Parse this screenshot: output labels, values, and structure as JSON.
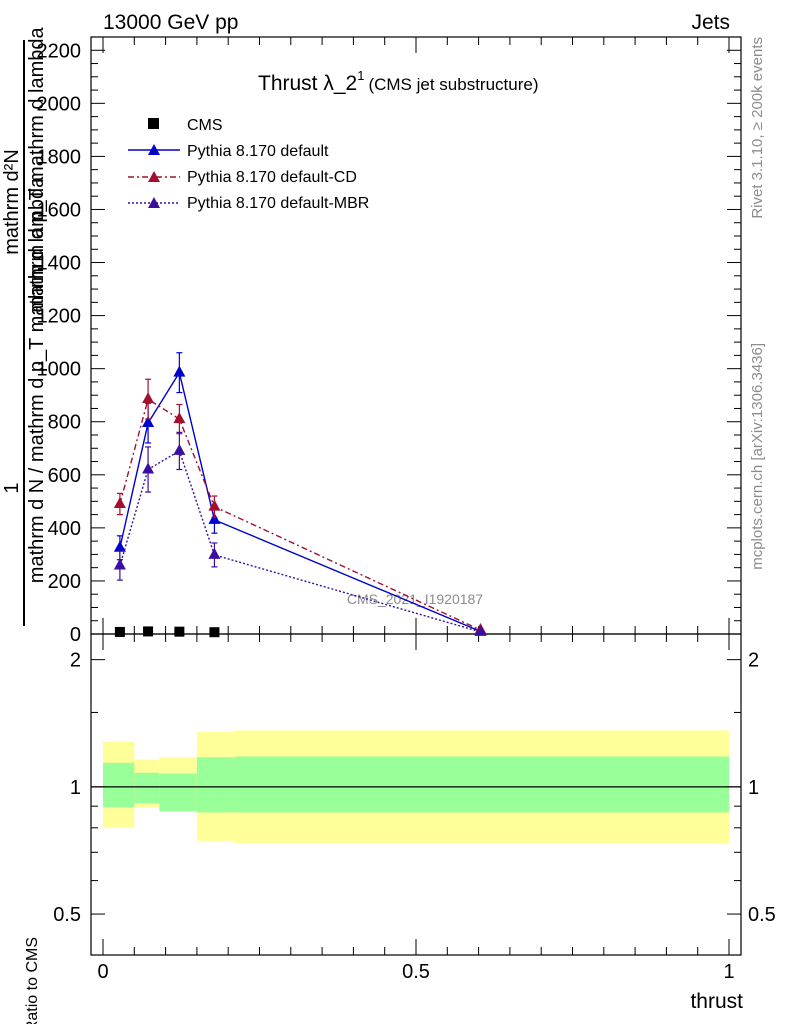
{
  "header": {
    "left": "13000 GeV pp",
    "right": "Jets"
  },
  "title": {
    "main": "Thrust λ_2",
    "superscript": "1",
    "sub": "(CMS jet substructure)"
  },
  "side_labels": {
    "rivet": "Rivet 3.1.10, ≥ 200k events",
    "mcplots": "mcplots.cern.ch [arXiv:1306.3436]"
  },
  "watermark": "CMS_2021_I1920187",
  "y_label_main": {
    "frac_one": "1",
    "denominator": "mathrm d N / mathrm d p_T mathrm d lambda",
    "numerator_line1": "mathrm d²N",
    "numerator_line2": "mathrm d p_T mathrm d lambda"
  },
  "legend": [
    {
      "label": "CMS"
    },
    {
      "label": "Pythia 8.170 default"
    },
    {
      "label": "Pythia 8.170 default-CD"
    },
    {
      "label": "Pythia 8.170 default-MBR"
    }
  ],
  "colors": {
    "cms": "#000000",
    "default": "#0000cc",
    "cd": "#a50f2f",
    "mbr": "#3a0fa0",
    "band_inner": "#99ff99",
    "band_outer": "#ffff99"
  },
  "chart_data": [
    {
      "type": "line",
      "panel": "main",
      "xlabel": "thrust",
      "xlim": [
        0,
        1
      ],
      "ylim": [
        0,
        2250
      ],
      "y_ticks": [
        0,
        200,
        400,
        600,
        800,
        1000,
        1200,
        1400,
        1600,
        1800,
        2000,
        2200
      ],
      "y_tick_labels": [
        "0",
        "200",
        "400",
        "600",
        "800",
        "1000",
        "1200",
        "1400",
        "1600",
        "1800",
        "2000",
        "2200"
      ],
      "series": [
        {
          "name": "CMS",
          "x": [
            0.027,
            0.072,
            0.122,
            0.178
          ],
          "y": [
            4,
            6,
            5,
            3
          ]
        },
        {
          "name": "Pythia 8.170 default",
          "x": [
            0.027,
            0.072,
            0.122,
            0.178,
            0.603
          ],
          "y": [
            325,
            795,
            985,
            430,
            10
          ],
          "yerr": [
            45,
            75,
            75,
            50,
            5
          ]
        },
        {
          "name": "Pythia 8.170 default-CD",
          "x": [
            0.027,
            0.072,
            0.122,
            0.178,
            0.603
          ],
          "y": [
            490,
            885,
            810,
            480,
            15
          ],
          "yerr": [
            40,
            75,
            55,
            40,
            5
          ]
        },
        {
          "name": "Pythia 8.170 default-MBR",
          "x": [
            0.027,
            0.072,
            0.122,
            0.178,
            0.603
          ],
          "y": [
            258,
            620,
            690,
            298,
            8
          ],
          "yerr": [
            55,
            85,
            70,
            45,
            4
          ]
        }
      ]
    },
    {
      "type": "area",
      "panel": "ratio",
      "xlabel": "thrust",
      "ylabel": "Ratio to CMS",
      "xlim": [
        0,
        1
      ],
      "ylim": [
        0.4,
        2.3
      ],
      "log_y": true,
      "y_ticks": [
        0.5,
        1,
        2
      ],
      "y_tick_labels": [
        "0.5",
        "1",
        "2"
      ],
      "x_ticks": [
        0,
        0.5,
        1
      ],
      "x_tick_labels": [
        "0",
        "0.5",
        "1"
      ],
      "reference_line": 1,
      "bins": [
        {
          "x0": 0.0,
          "x1": 0.05,
          "inner": [
            0.895,
            1.14
          ],
          "outer": [
            0.8,
            1.28
          ]
        },
        {
          "x0": 0.05,
          "x1": 0.09,
          "inner": [
            0.915,
            1.08
          ],
          "outer": [
            0.895,
            1.16
          ]
        },
        {
          "x0": 0.09,
          "x1": 0.15,
          "inner": [
            0.875,
            1.075
          ],
          "outer": [
            0.885,
            1.175
          ]
        },
        {
          "x0": 0.15,
          "x1": 0.21,
          "inner": [
            0.87,
            1.175
          ],
          "outer": [
            0.745,
            1.35
          ]
        },
        {
          "x0": 0.21,
          "x1": 1.0,
          "inner": [
            0.87,
            1.18
          ],
          "outer": [
            0.735,
            1.36
          ]
        }
      ]
    }
  ]
}
